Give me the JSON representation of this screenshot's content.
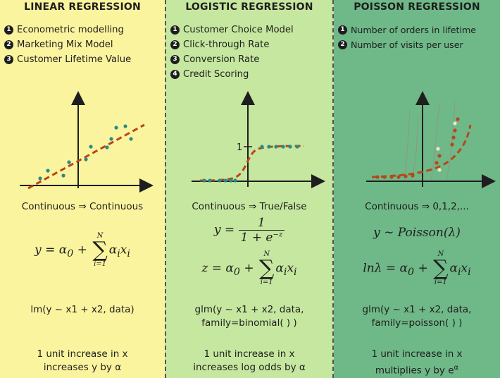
{
  "columns": [
    {
      "title": "LINEAR REGRESSION",
      "uses": [
        {
          "num": "1",
          "text": "Econometric modelling"
        },
        {
          "num": "2",
          "text": "Marketing Mix Model"
        },
        {
          "num": "3",
          "text": "Customer Lifetime Value"
        }
      ],
      "mapping": "Continuous ⇒ Continuous",
      "formula": {
        "lhs": "y = α",
        "sub0": "0",
        "plus": " + ",
        "sum_top": "N",
        "sum_bot": "i=1",
        "term": "α",
        "sub_i": "i",
        "x": "x",
        "sub_i2": "i"
      },
      "code": [
        "lm(y ~ x1 + x2, data)"
      ],
      "effect": [
        "1 unit increase in x",
        "increases y by α"
      ]
    },
    {
      "title": "LOGISTIC REGRESSION",
      "uses": [
        {
          "num": "1",
          "text": "Customer Choice Model"
        },
        {
          "num": "2",
          "text": "Click-through Rate"
        },
        {
          "num": "3",
          "text": "Conversion Rate"
        },
        {
          "num": "4",
          "text": "Credit Scoring"
        }
      ],
      "mapping": "Continuous ⇒ True/False",
      "formula_a": {
        "lhs": "y =",
        "num": "1",
        "den": "1 + e",
        "den_sup": "−z"
      },
      "formula_b": {
        "lhs": "z = α",
        "sub0": "0",
        "plus": " + ",
        "sum_top": "N",
        "sum_bot": "i=1",
        "term": "α",
        "sub_i": "i",
        "x": "x",
        "sub_i2": "i"
      },
      "plot_label": "1",
      "code": [
        "glm(y ~ x1 + x2, data,",
        "family=binomial( ) )"
      ],
      "effect": [
        "1 unit increase in x",
        "increases log odds by α"
      ]
    },
    {
      "title": "POISSON REGRESSION",
      "uses": [
        {
          "num": "1",
          "text": "Number of orders in lifetime"
        },
        {
          "num": "2",
          "text": "Number of visits per user"
        }
      ],
      "mapping": "Continuous ⇒ 0,1,2,...",
      "formula_a": {
        "text": "y ∼ Poisson(λ)"
      },
      "formula_b": {
        "lhs": "lnλ = α",
        "sub0": "0",
        "plus": " + ",
        "sum_top": "N",
        "sum_bot": "i=1",
        "term": "α",
        "sub_i": "i",
        "x": "x",
        "sub_i2": "i"
      },
      "code": [
        "glm(y ~ x1 + x2, data,",
        "family=poisson( ) )"
      ],
      "effect": [
        "1 unit increase in x",
        "multiplies y by e"
      ],
      "effect_sup": "α"
    }
  ],
  "colors": {
    "linear_bg": "#fbf49e",
    "logistic_bg": "#c6e79f",
    "poisson_bg": "#6fb888",
    "curve": "#b8461b",
    "dots": "#2a8a86"
  }
}
